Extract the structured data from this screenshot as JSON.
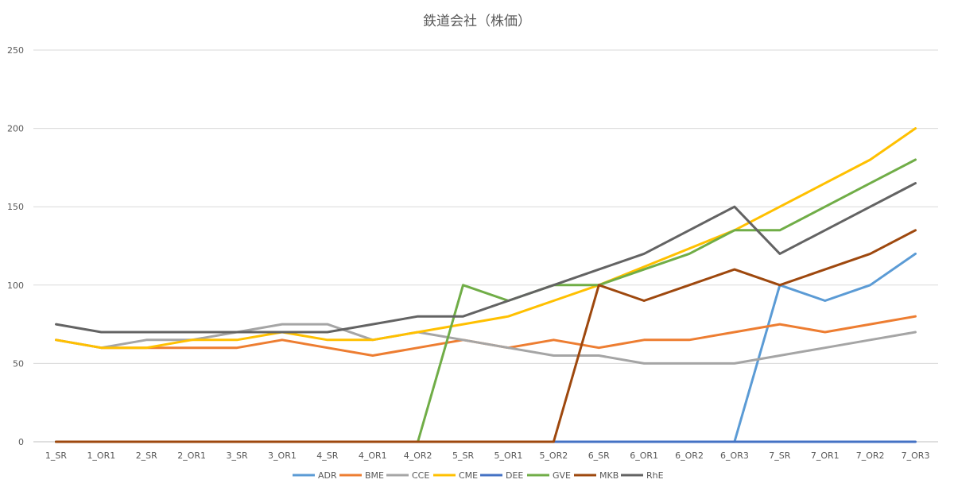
{
  "chart_data": {
    "type": "line",
    "title": "鉄道会社（株価）",
    "xlabel": "",
    "ylabel": "",
    "ylim": [
      0,
      250
    ],
    "yticks": [
      0,
      50,
      100,
      150,
      200,
      250
    ],
    "grid": true,
    "legend_position": "bottom",
    "categories": [
      "1_SR",
      "1_OR1",
      "2_SR",
      "2_OR1",
      "3_SR",
      "3_OR1",
      "4_SR",
      "4_OR1",
      "4_OR2",
      "5_SR",
      "5_OR1",
      "5_OR2",
      "6_SR",
      "6_OR1",
      "6_OR2",
      "6_OR3",
      "7_SR",
      "7_OR1",
      "7_OR2",
      "7_OR3"
    ],
    "series": [
      {
        "name": "ADR",
        "color": "#5b9bd5",
        "values": [
          0,
          0,
          0,
          0,
          0,
          0,
          0,
          0,
          0,
          0,
          0,
          0,
          0,
          0,
          0,
          0,
          100,
          90,
          100,
          120
        ]
      },
      {
        "name": "BME",
        "color": "#ed7d31",
        "values": [
          65,
          60,
          60,
          60,
          60,
          65,
          60,
          55,
          60,
          65,
          60,
          65,
          60,
          65,
          65,
          70,
          75,
          70,
          75,
          80
        ]
      },
      {
        "name": "CCE",
        "color": "#a5a5a5",
        "values": [
          65,
          60,
          65,
          65,
          70,
          75,
          75,
          65,
          70,
          65,
          60,
          55,
          55,
          50,
          50,
          50,
          55,
          60,
          65,
          70
        ]
      },
      {
        "name": "CME",
        "color": "#ffc000",
        "values": [
          65,
          60,
          60,
          65,
          65,
          70,
          65,
          65,
          70,
          75,
          80,
          90,
          100,
          null,
          null,
          135,
          150,
          165,
          180,
          200
        ]
      },
      {
        "name": "DEE",
        "color": "#4472c4",
        "values": [
          0,
          0,
          0,
          0,
          0,
          0,
          0,
          0,
          0,
          0,
          0,
          0,
          0,
          0,
          0,
          0,
          0,
          0,
          0,
          0
        ]
      },
      {
        "name": "GVE",
        "color": "#70ad47",
        "values": [
          0,
          0,
          0,
          0,
          0,
          0,
          0,
          0,
          0,
          100,
          90,
          100,
          100,
          110,
          120,
          135,
          135,
          150,
          165,
          180
        ]
      },
      {
        "name": "MKB",
        "color": "#9e480e",
        "values": [
          0,
          0,
          0,
          0,
          0,
          0,
          0,
          0,
          0,
          0,
          0,
          0,
          100,
          90,
          100,
          110,
          100,
          110,
          120,
          135
        ]
      },
      {
        "name": "RhE",
        "color": "#636363",
        "values": [
          75,
          70,
          70,
          70,
          70,
          70,
          70,
          75,
          80,
          80,
          90,
          100,
          110,
          120,
          135,
          150,
          120,
          135,
          150,
          165
        ]
      }
    ]
  }
}
